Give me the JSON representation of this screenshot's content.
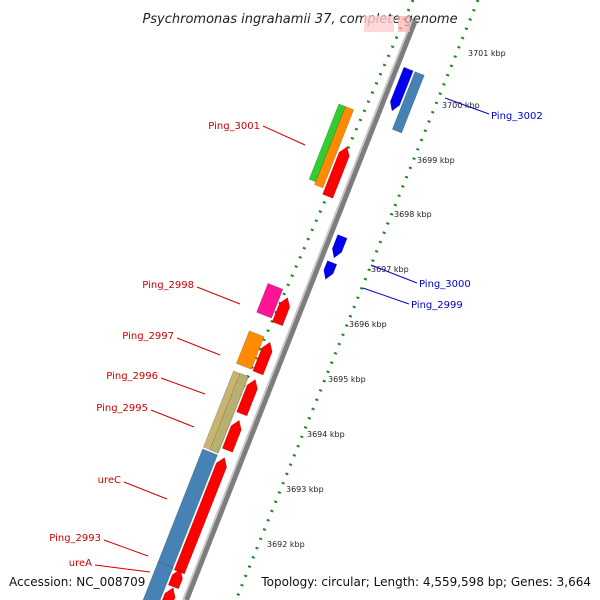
{
  "title": "Psychromonas ingrahamii 37, complete genome",
  "footer": {
    "accession": "Accession: NC_008709",
    "summary": "Topology: circular; Length: 4,559,598 bp; Genes: 3,664"
  },
  "colors": {
    "forward_label": "#cc0000",
    "reverse_label": "#0000cc",
    "tick": "#1a8a1a",
    "backbone": "#8c8c8c"
  },
  "ticks": [
    {
      "label": "3701 kbp",
      "kbp": 3701
    },
    {
      "label": "3700 kbp",
      "kbp": 3700
    },
    {
      "label": "3699 kbp",
      "kbp": 3699
    },
    {
      "label": "3698 kbp",
      "kbp": 3698
    },
    {
      "label": "3697 kbp",
      "kbp": 3697
    },
    {
      "label": "3696 kbp",
      "kbp": 3696
    },
    {
      "label": "3695 kbp",
      "kbp": 3695
    },
    {
      "label": "3694 kbp",
      "kbp": 3694
    },
    {
      "label": "3693 kbp",
      "kbp": 3693
    },
    {
      "label": "3692 kbp",
      "kbp": 3692
    }
  ],
  "labels": [
    {
      "name": "Ping_3001",
      "strand": "forward"
    },
    {
      "name": "Ping_2998",
      "strand": "forward"
    },
    {
      "name": "Ping_2997",
      "strand": "forward"
    },
    {
      "name": "Ping_2996",
      "strand": "forward"
    },
    {
      "name": "Ping_2995",
      "strand": "forward"
    },
    {
      "name": "ureC",
      "strand": "forward"
    },
    {
      "name": "Ping_2993",
      "strand": "forward"
    },
    {
      "name": "ureA",
      "strand": "forward"
    },
    {
      "name": "Ping_3002",
      "strand": "reverse"
    },
    {
      "name": "Ping_3000",
      "strand": "reverse"
    },
    {
      "name": "Ping_2999",
      "strand": "reverse"
    }
  ],
  "features": [
    {
      "track": "cds_fwd",
      "color": "#ff0000"
    },
    {
      "track": "cds_fwd",
      "color": "#ff0000"
    },
    {
      "track": "cds_fwd",
      "color": "#ff0000"
    },
    {
      "track": "cds_fwd",
      "color": "#ff0000"
    },
    {
      "track": "cds_fwd",
      "color": "#ff0000"
    },
    {
      "track": "cds_fwd",
      "color": "#ff0000"
    },
    {
      "track": "cds_fwd",
      "color": "#ff0000"
    },
    {
      "track": "cds_fwd",
      "color": "#ff0000"
    },
    {
      "track": "cds_rev",
      "color": "#0000ee"
    },
    {
      "track": "cds_rev",
      "color": "#0000ee"
    },
    {
      "track": "cds_rev",
      "color": "#0000ee"
    },
    {
      "track": "cog_rev",
      "color": "#4682b4"
    },
    {
      "track": "cog_fwd",
      "color": "#ff8c00"
    },
    {
      "track": "cog_fwd",
      "color": "#32cd32"
    },
    {
      "track": "cog_fwd",
      "color": "#ff1493"
    },
    {
      "track": "cog_fwd",
      "color": "#ff8c00"
    },
    {
      "track": "cog_fwd",
      "color": "#c8b46e"
    },
    {
      "track": "cog_fwd",
      "color": "#b8b070"
    },
    {
      "track": "cog_fwd",
      "color": "#4682b4"
    },
    {
      "track": "cog_fwd",
      "color": "#4682b4"
    }
  ]
}
